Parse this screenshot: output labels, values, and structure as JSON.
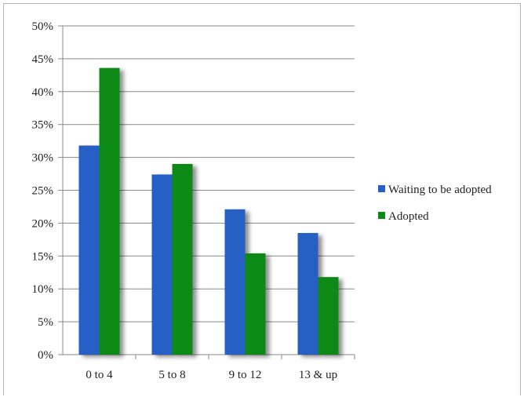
{
  "chart_data": {
    "type": "bar",
    "categories": [
      "0 to 4",
      "5 to 8",
      "9 to 12",
      "13 & up"
    ],
    "series": [
      {
        "name": "Waiting to be adopted",
        "color": "#2560c4",
        "values": [
          31.8,
          27.4,
          22.1,
          18.5
        ]
      },
      {
        "name": "Adopted",
        "color": "#0b8a16",
        "values": [
          43.6,
          29.0,
          15.4,
          11.8
        ]
      }
    ],
    "ylim": [
      0,
      50
    ],
    "yticks": [
      "0%",
      "5%",
      "10%",
      "15%",
      "20%",
      "25%",
      "30%",
      "35%",
      "40%",
      "45%",
      "50%"
    ],
    "grid": true,
    "legend_position": "right"
  }
}
